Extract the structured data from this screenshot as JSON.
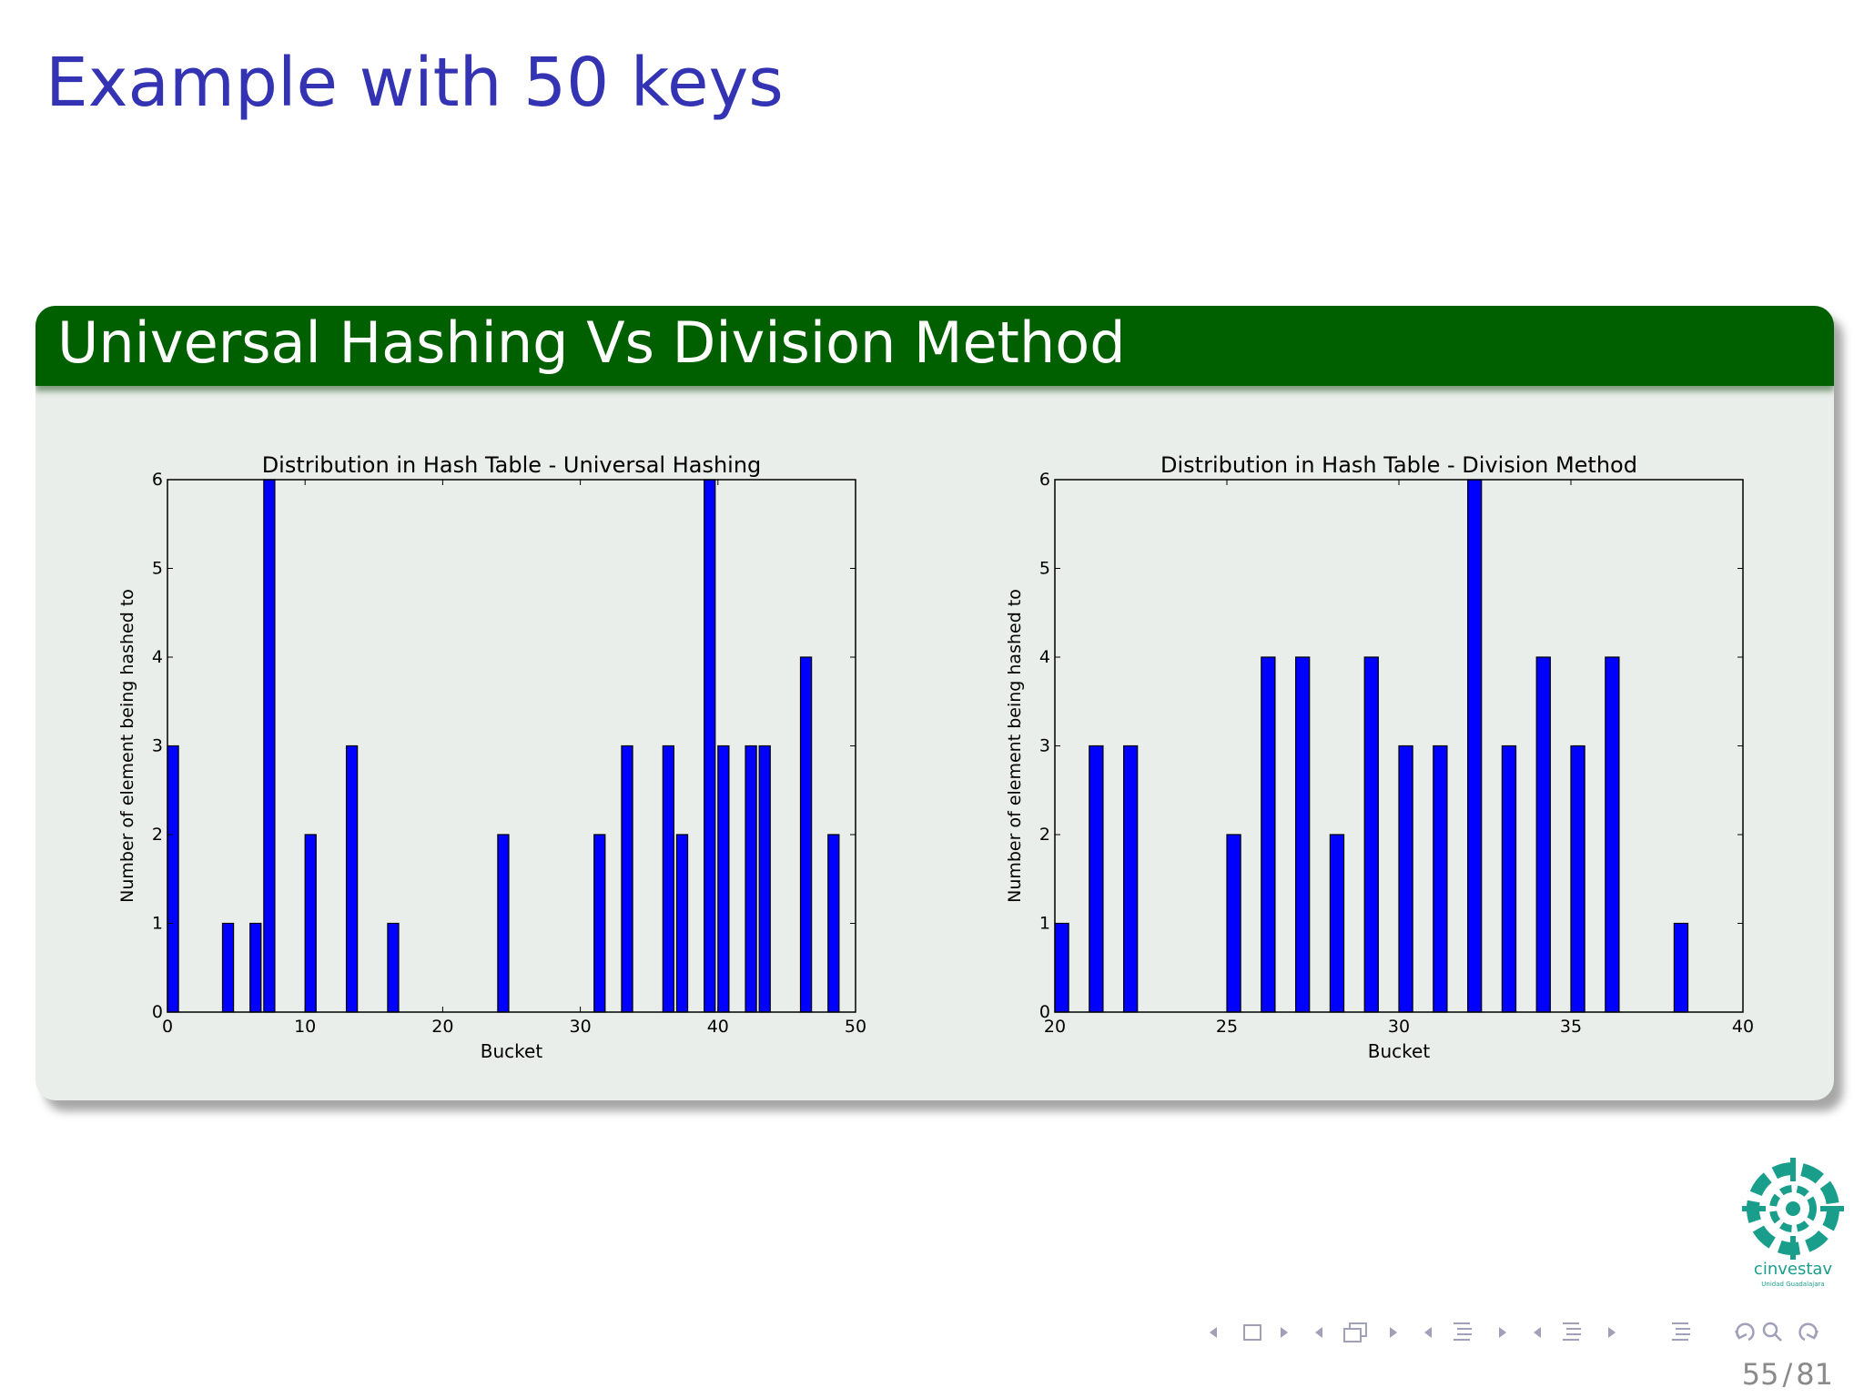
{
  "slide": {
    "title": "Example with 50 keys",
    "block_title": "Universal Hashing Vs Division Method",
    "page_current": "55",
    "page_sep": "/",
    "page_total": "81",
    "logo_text": "cinvestav",
    "logo_subtext": "Unidad Guadalajara"
  },
  "colors": {
    "title": "#3333b3",
    "block_header": "#006000",
    "block_body": "#e9eeea",
    "bar": "#0000ff",
    "logo": "#1a9e8c"
  },
  "chart_data": [
    {
      "type": "bar",
      "title": "Distribution in Hash Table - Universal Hashing",
      "xlabel": "Bucket",
      "ylabel": "Number of element being hashed to",
      "xlim": [
        0,
        50
      ],
      "ylim": [
        0,
        6
      ],
      "xticks": [
        0,
        10,
        20,
        30,
        40,
        50
      ],
      "yticks": [
        0,
        1,
        2,
        3,
        4,
        5,
        6
      ],
      "x": [
        0,
        4,
        6,
        7,
        10,
        13,
        16,
        24,
        31,
        33,
        36,
        37,
        39,
        40,
        42,
        43,
        46,
        48
      ],
      "values": [
        3,
        1,
        1,
        6,
        2,
        3,
        1,
        2,
        2,
        3,
        3,
        2,
        6,
        3,
        3,
        3,
        4,
        2
      ],
      "grid": false,
      "legend": false
    },
    {
      "type": "bar",
      "title": "Distribution in Hash Table - Division Method",
      "xlabel": "Bucket",
      "ylabel": "Number of element being hashed to",
      "xlim": [
        20,
        40
      ],
      "ylim": [
        0,
        6
      ],
      "xticks": [
        20,
        25,
        30,
        35,
        40
      ],
      "yticks": [
        0,
        1,
        2,
        3,
        4,
        5,
        6
      ],
      "x": [
        20,
        21,
        22,
        25,
        26,
        27,
        28,
        29,
        30,
        31,
        32,
        33,
        34,
        35,
        36,
        38
      ],
      "values": [
        1,
        3,
        3,
        2,
        4,
        4,
        2,
        4,
        3,
        3,
        6,
        3,
        4,
        3,
        4,
        1
      ],
      "grid": false,
      "legend": false
    }
  ]
}
